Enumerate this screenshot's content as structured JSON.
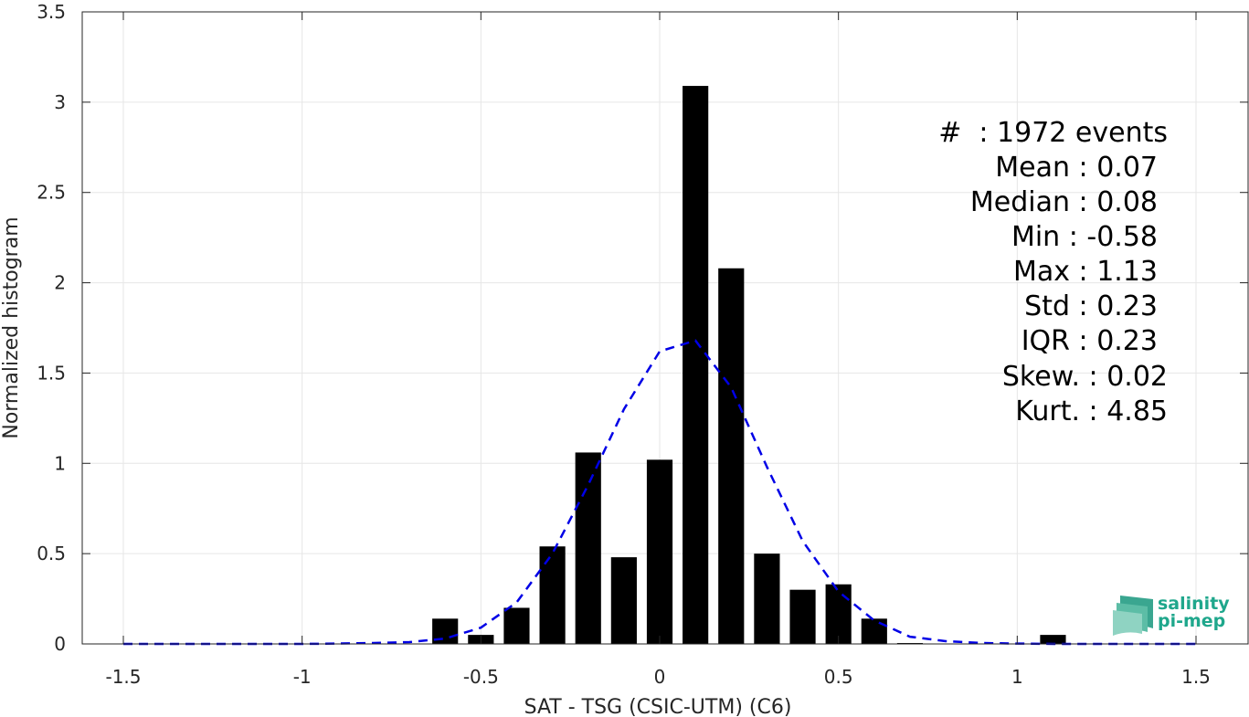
{
  "chart_data": {
    "type": "bar",
    "xlabel": "SAT - TSG (CSIC-UTM) (C6)",
    "ylabel": "Normalized histogram",
    "xlim": [
      -1.5,
      1.5
    ],
    "ylim": [
      0,
      3.5
    ],
    "xticks": [
      -1.5,
      -1,
      -0.5,
      0,
      0.5,
      1,
      1.5
    ],
    "xtick_labels": [
      "-1.5",
      "-1",
      "-0.5",
      "0",
      "0.5",
      "1",
      "1.5"
    ],
    "yticks": [
      0,
      0.5,
      1,
      1.5,
      2,
      2.5,
      3,
      3.5
    ],
    "ytick_labels": [
      "0",
      "0.5",
      "1",
      "1.5",
      "2",
      "2.5",
      "3",
      "3.5"
    ],
    "grid": true,
    "bin_width": 0.1,
    "bar_color": "#000000",
    "categories": [
      -0.6,
      -0.5,
      -0.4,
      -0.3,
      -0.2,
      -0.1,
      0.0,
      0.1,
      0.2,
      0.3,
      0.4,
      0.5,
      0.6,
      0.7,
      1.1
    ],
    "values": [
      0.14,
      0.05,
      0.2,
      0.54,
      1.06,
      0.48,
      1.02,
      3.09,
      2.08,
      0.5,
      0.3,
      0.33,
      0.14,
      0.005,
      0.05
    ],
    "fit_curve": {
      "style": "dashed",
      "color": "#0000e6",
      "x": [
        -1.5,
        -1.4,
        -1.3,
        -1.2,
        -1.1,
        -1.0,
        -0.9,
        -0.8,
        -0.7,
        -0.6,
        -0.5,
        -0.4,
        -0.3,
        -0.2,
        -0.1,
        0.0,
        0.1,
        0.2,
        0.3,
        0.4,
        0.5,
        0.6,
        0.7,
        0.8,
        0.9,
        1.0,
        1.1,
        1.2,
        1.3,
        1.4,
        1.5
      ],
      "y": [
        0,
        0,
        0,
        0,
        0,
        0,
        0.002,
        0.005,
        0.01,
        0.03,
        0.09,
        0.23,
        0.5,
        0.88,
        1.3,
        1.62,
        1.68,
        1.42,
        0.98,
        0.57,
        0.29,
        0.13,
        0.04,
        0.015,
        0.005,
        0.002,
        0,
        0,
        0,
        0,
        0
      ]
    },
    "stats": [
      "#  : 1972 events",
      "Mean : 0.07",
      "Median : 0.08",
      "Min : -0.58",
      "Max : 1.13",
      "Std : 0.23",
      "IQR : 0.23",
      "Skew. : 0.02",
      "Kurt. : 4.85"
    ]
  },
  "logo": {
    "line1": "salinity",
    "line2": "pi-mep",
    "color": "#1fa78c"
  }
}
